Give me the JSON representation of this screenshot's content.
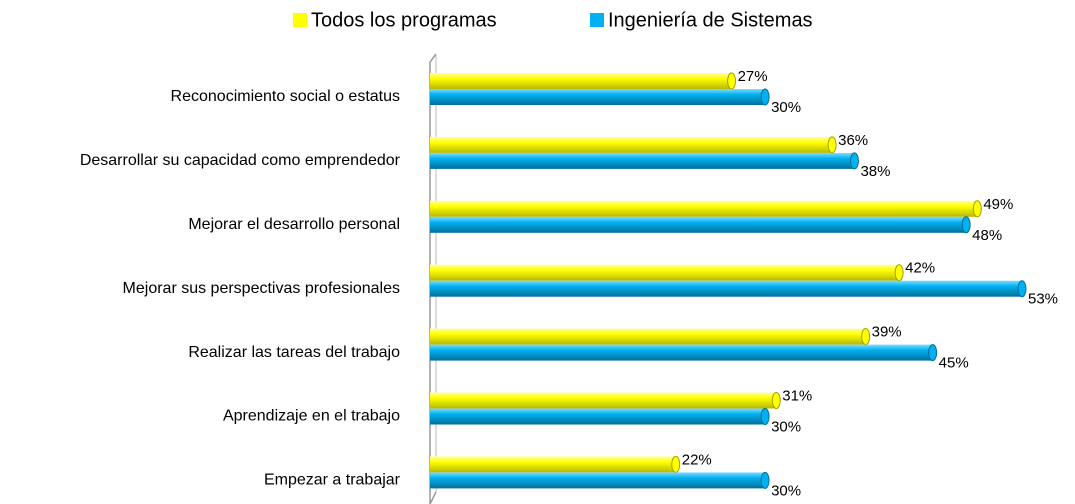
{
  "chart_data": {
    "type": "bar",
    "orientation": "horizontal",
    "categories": [
      "Reconocimiento social o estatus",
      "Desarrollar su capacidad como emprendedor",
      "Mejorar el desarrollo personal",
      "Mejorar sus perspectivas profesionales",
      "Realizar las tareas del trabajo",
      "Aprendizaje en el trabajo",
      "Empezar a trabajar"
    ],
    "series": [
      {
        "name": "Todos los programas",
        "color": "#ffff00",
        "values": [
          27,
          36,
          49,
          42,
          39,
          31,
          22
        ],
        "value_labels": [
          "27%",
          "36%",
          "49%",
          "42%",
          "39%",
          "31%",
          "22%"
        ]
      },
      {
        "name": "Ingeniería de Sistemas",
        "color": "#00b0f0",
        "values": [
          30,
          38,
          48,
          53,
          45,
          30,
          30
        ],
        "value_labels": [
          "30%",
          "38%",
          "48%",
          "53%",
          "45%",
          "30%",
          "30%"
        ]
      }
    ],
    "legend": "top"
  }
}
